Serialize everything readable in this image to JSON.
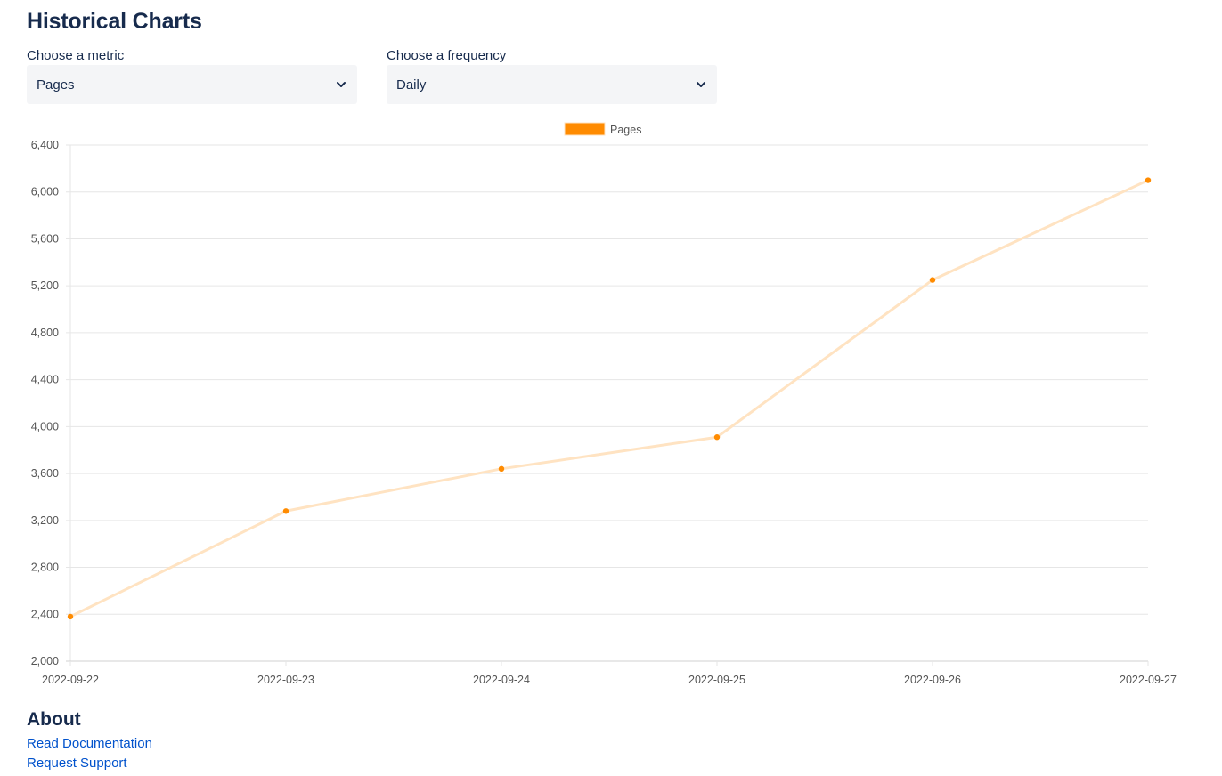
{
  "header": {
    "title": "Historical Charts"
  },
  "controls": {
    "metric": {
      "label": "Choose a metric",
      "value": "Pages"
    },
    "frequency": {
      "label": "Choose a frequency",
      "value": "Daily"
    }
  },
  "colors": {
    "series_point": "#ff8b00",
    "series_line": "#ffe3c2",
    "grid": "#e6e6e6",
    "axis_text": "#555555"
  },
  "chart_data": {
    "type": "line",
    "title": "",
    "xlabel": "",
    "ylabel": "",
    "legend_position": "top-center",
    "grid": true,
    "categories": [
      "2022-09-22",
      "2022-09-23",
      "2022-09-24",
      "2022-09-25",
      "2022-09-26",
      "2022-09-27"
    ],
    "series": [
      {
        "name": "Pages",
        "values": [
          2380,
          3280,
          3640,
          3910,
          5250,
          6100
        ]
      }
    ],
    "ylim": [
      2000,
      6400
    ],
    "yticks": [
      "2,000",
      "2,400",
      "2,800",
      "3,200",
      "3,600",
      "4,000",
      "4,400",
      "4,800",
      "5,200",
      "5,600",
      "6,000",
      "6,400"
    ]
  },
  "about": {
    "title": "About",
    "links": {
      "documentation": "Read Documentation",
      "support": "Request Support"
    }
  }
}
